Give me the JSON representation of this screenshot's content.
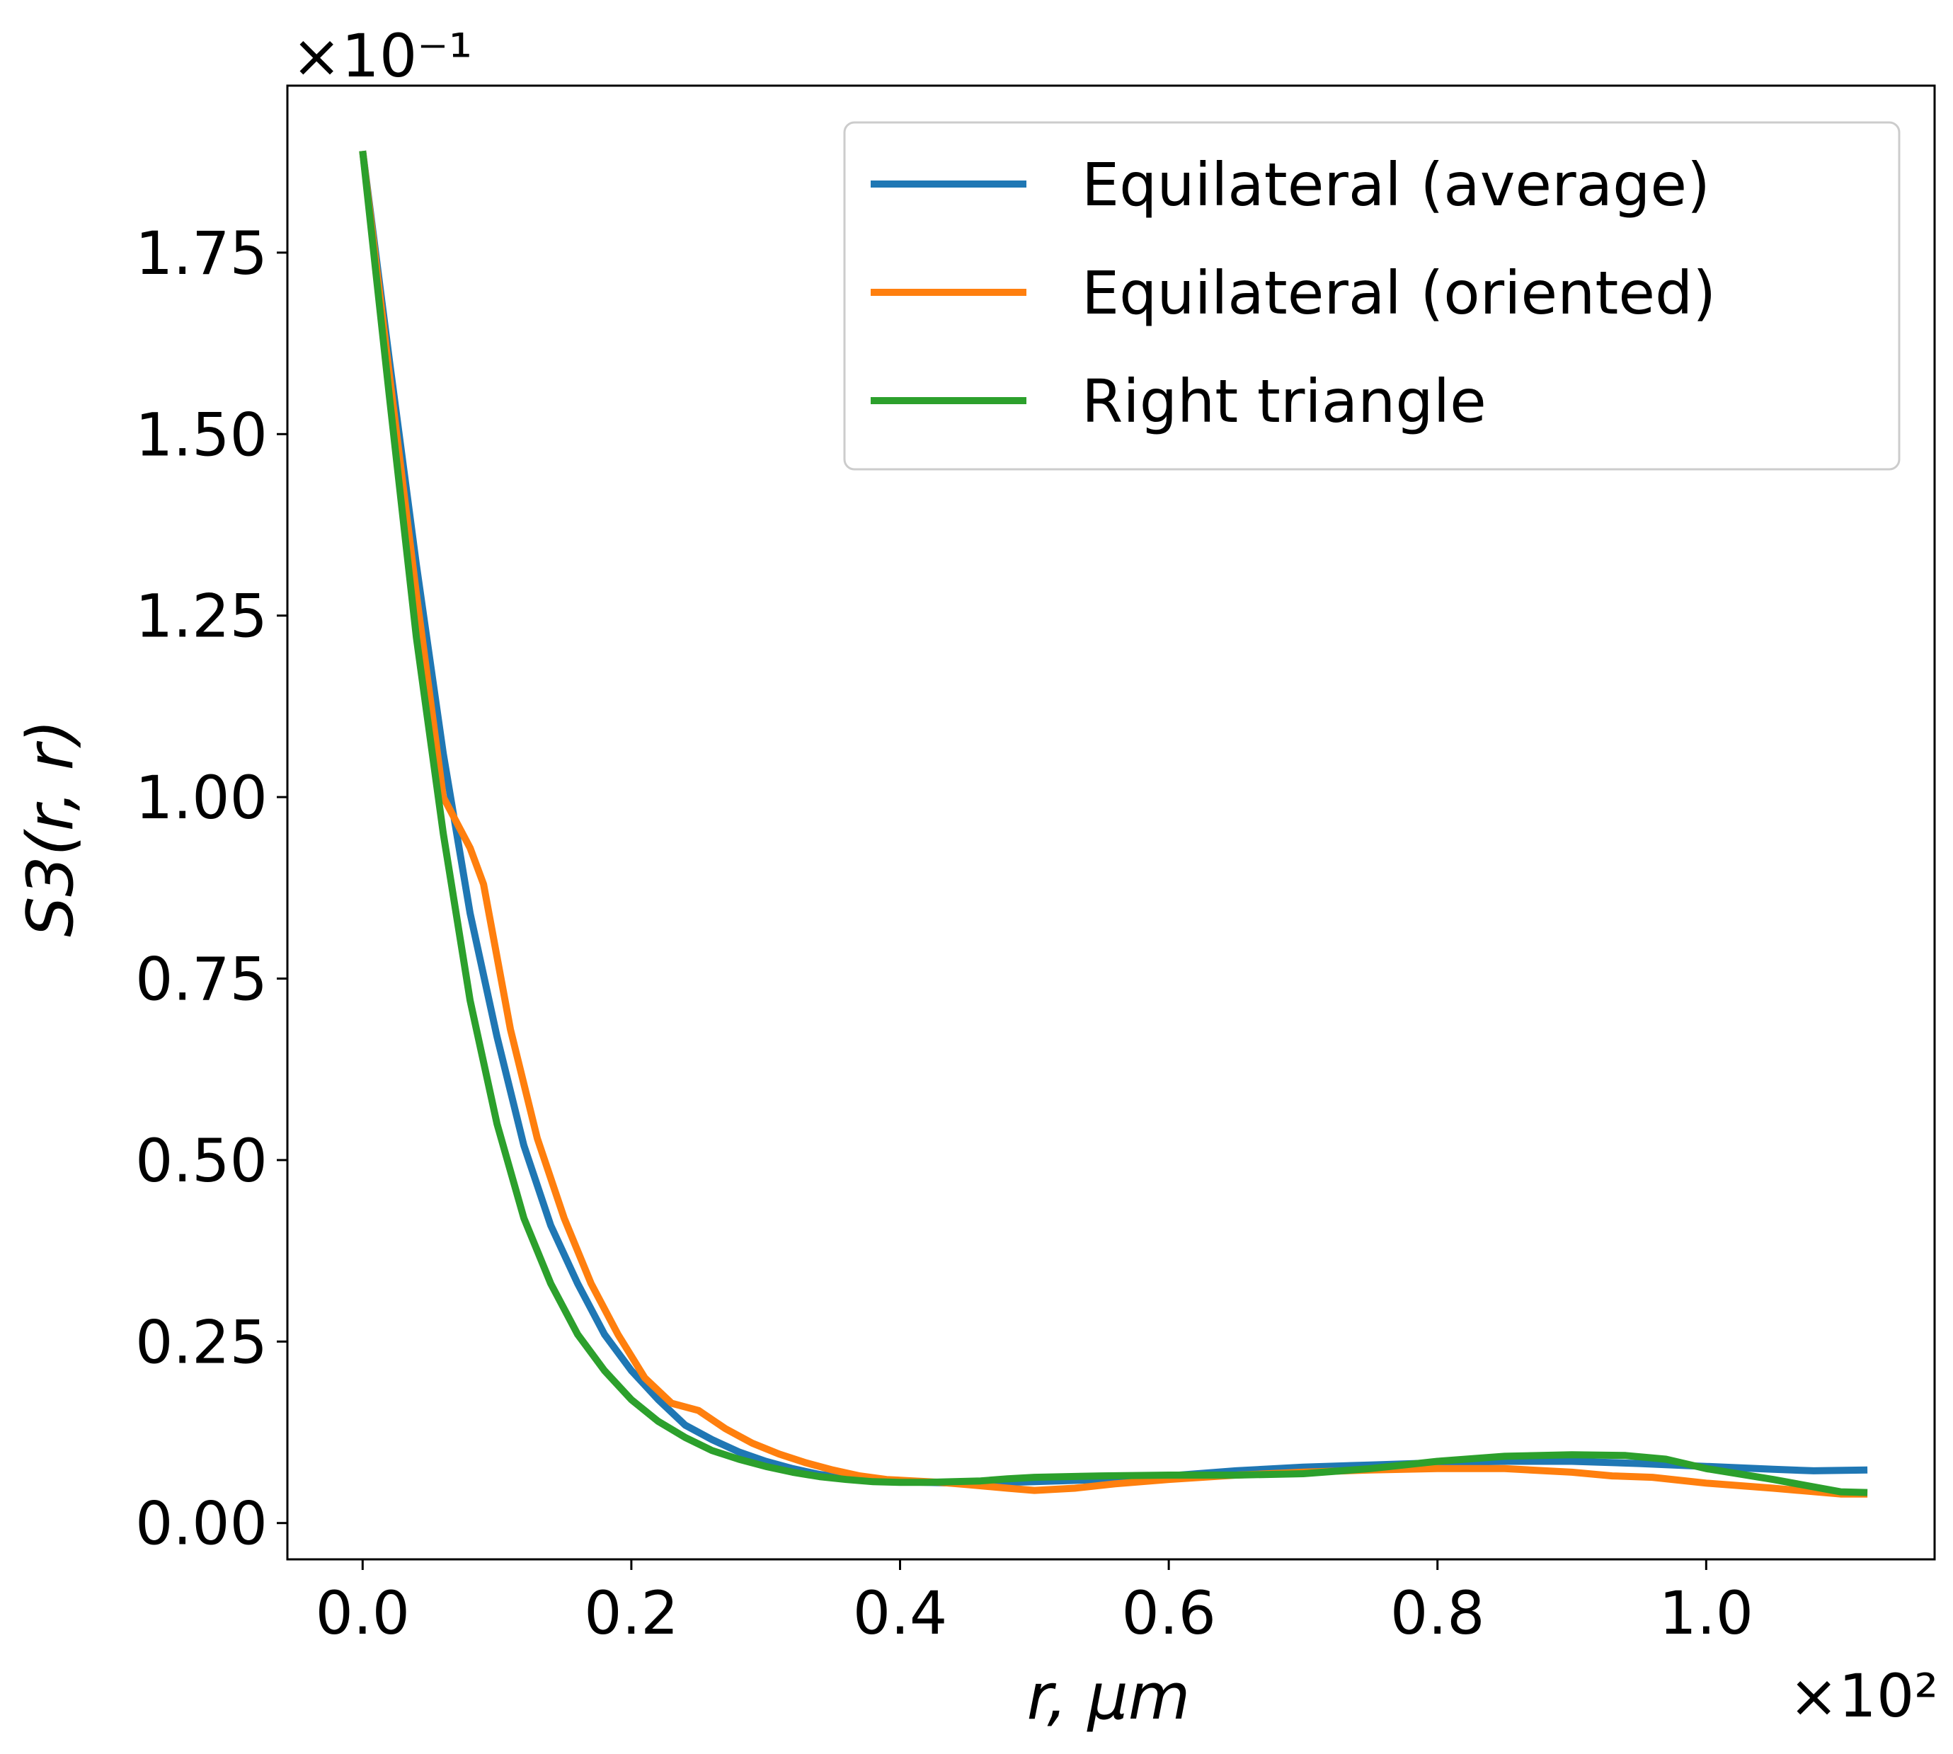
{
  "chart_data": {
    "type": "line",
    "title": "",
    "xlabel": "r, μm",
    "ylabel": "S3(r, r)",
    "x_offset_label": "×10²",
    "y_offset_label": "×10⁻¹",
    "x_unit_multiplier": 100,
    "y_unit_multiplier": 0.1,
    "xlim": [
      -0.056,
      1.17
    ],
    "ylim": [
      -0.05,
      1.98
    ],
    "xticks": [
      0.0,
      0.2,
      0.4,
      0.6,
      0.8,
      1.0
    ],
    "xtick_labels": [
      "0.0",
      "0.2",
      "0.4",
      "0.6",
      "0.8",
      "1.0"
    ],
    "yticks": [
      0.0,
      0.25,
      0.5,
      0.75,
      1.0,
      1.25,
      1.5,
      1.75
    ],
    "ytick_labels": [
      "0.00",
      "0.25",
      "0.50",
      "0.75",
      "1.00",
      "1.25",
      "1.50",
      "1.75"
    ],
    "grid": false,
    "legend_position": "top-right",
    "series": [
      {
        "name": "Equilateral (average)",
        "color": "#1f77b4",
        "points": [
          [
            0.0,
            1.89
          ],
          [
            0.02,
            1.6
          ],
          [
            0.04,
            1.32
          ],
          [
            0.06,
            1.06
          ],
          [
            0.08,
            0.84
          ],
          [
            0.1,
            0.67
          ],
          [
            0.12,
            0.52
          ],
          [
            0.14,
            0.41
          ],
          [
            0.16,
            0.33
          ],
          [
            0.18,
            0.26
          ],
          [
            0.2,
            0.21
          ],
          [
            0.22,
            0.17
          ],
          [
            0.24,
            0.135
          ],
          [
            0.26,
            0.115
          ],
          [
            0.28,
            0.098
          ],
          [
            0.3,
            0.085
          ],
          [
            0.32,
            0.075
          ],
          [
            0.34,
            0.067
          ],
          [
            0.36,
            0.062
          ],
          [
            0.38,
            0.058
          ],
          [
            0.4,
            0.057
          ],
          [
            0.42,
            0.056
          ],
          [
            0.44,
            0.055
          ],
          [
            0.46,
            0.056
          ],
          [
            0.48,
            0.056
          ],
          [
            0.5,
            0.057
          ],
          [
            0.55,
            0.06
          ],
          [
            0.6,
            0.065
          ],
          [
            0.65,
            0.072
          ],
          [
            0.7,
            0.077
          ],
          [
            0.75,
            0.08
          ],
          [
            0.8,
            0.083
          ],
          [
            0.85,
            0.085
          ],
          [
            0.9,
            0.085
          ],
          [
            0.95,
            0.082
          ],
          [
            1.0,
            0.078
          ],
          [
            1.05,
            0.074
          ],
          [
            1.08,
            0.072
          ],
          [
            1.12,
            0.073
          ]
        ]
      },
      {
        "name": "Equilateral (oriented)",
        "color": "#ff7f0e",
        "points": [
          [
            0.0,
            1.89
          ],
          [
            0.02,
            1.58
          ],
          [
            0.04,
            1.28
          ],
          [
            0.06,
            1.0
          ],
          [
            0.08,
            0.93
          ],
          [
            0.09,
            0.88
          ],
          [
            0.11,
            0.68
          ],
          [
            0.13,
            0.53
          ],
          [
            0.15,
            0.42
          ],
          [
            0.17,
            0.33
          ],
          [
            0.19,
            0.26
          ],
          [
            0.21,
            0.2
          ],
          [
            0.23,
            0.165
          ],
          [
            0.25,
            0.155
          ],
          [
            0.27,
            0.13
          ],
          [
            0.29,
            0.11
          ],
          [
            0.31,
            0.095
          ],
          [
            0.33,
            0.083
          ],
          [
            0.35,
            0.073
          ],
          [
            0.37,
            0.065
          ],
          [
            0.39,
            0.06
          ],
          [
            0.41,
            0.058
          ],
          [
            0.43,
            0.056
          ],
          [
            0.45,
            0.053
          ],
          [
            0.48,
            0.048
          ],
          [
            0.5,
            0.045
          ],
          [
            0.53,
            0.048
          ],
          [
            0.56,
            0.054
          ],
          [
            0.6,
            0.06
          ],
          [
            0.65,
            0.066
          ],
          [
            0.7,
            0.07
          ],
          [
            0.75,
            0.073
          ],
          [
            0.8,
            0.075
          ],
          [
            0.85,
            0.075
          ],
          [
            0.9,
            0.07
          ],
          [
            0.93,
            0.065
          ],
          [
            0.96,
            0.063
          ],
          [
            1.0,
            0.055
          ],
          [
            1.05,
            0.048
          ],
          [
            1.1,
            0.04
          ],
          [
            1.12,
            0.04
          ]
        ]
      },
      {
        "name": "Right triangle",
        "color": "#2ca02c",
        "points": [
          [
            0.0,
            1.89
          ],
          [
            0.02,
            1.55
          ],
          [
            0.04,
            1.22
          ],
          [
            0.06,
            0.95
          ],
          [
            0.08,
            0.72
          ],
          [
            0.1,
            0.55
          ],
          [
            0.12,
            0.42
          ],
          [
            0.14,
            0.33
          ],
          [
            0.16,
            0.26
          ],
          [
            0.18,
            0.21
          ],
          [
            0.2,
            0.17
          ],
          [
            0.22,
            0.14
          ],
          [
            0.24,
            0.118
          ],
          [
            0.26,
            0.1
          ],
          [
            0.28,
            0.088
          ],
          [
            0.3,
            0.078
          ],
          [
            0.32,
            0.07
          ],
          [
            0.34,
            0.064
          ],
          [
            0.36,
            0.06
          ],
          [
            0.38,
            0.057
          ],
          [
            0.4,
            0.056
          ],
          [
            0.42,
            0.056
          ],
          [
            0.44,
            0.057
          ],
          [
            0.46,
            0.058
          ],
          [
            0.48,
            0.061
          ],
          [
            0.5,
            0.063
          ],
          [
            0.55,
            0.065
          ],
          [
            0.6,
            0.066
          ],
          [
            0.65,
            0.066
          ],
          [
            0.7,
            0.068
          ],
          [
            0.75,
            0.075
          ],
          [
            0.8,
            0.085
          ],
          [
            0.85,
            0.092
          ],
          [
            0.9,
            0.094
          ],
          [
            0.94,
            0.093
          ],
          [
            0.97,
            0.088
          ],
          [
            1.0,
            0.075
          ],
          [
            1.05,
            0.06
          ],
          [
            1.1,
            0.043
          ],
          [
            1.12,
            0.042
          ]
        ]
      }
    ]
  }
}
